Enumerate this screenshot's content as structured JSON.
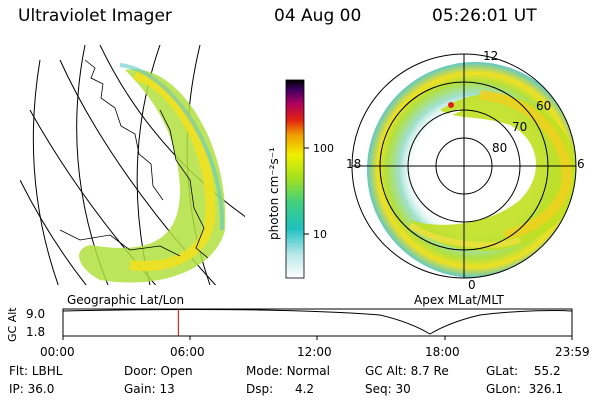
{
  "header": {
    "title": "Ultraviolet Imager",
    "date": "04 Aug 00",
    "time": "05:26:01 UT"
  },
  "left_panel": {
    "label": "Geographic Lat/Lon"
  },
  "right_panel": {
    "label": "Apex MLat/MLT",
    "mlt_labels": {
      "top": "12",
      "left": "18",
      "right": "6",
      "bottom": "0"
    },
    "lat_labels": [
      "60",
      "70",
      "80"
    ]
  },
  "colorbar": {
    "unit": "photon cm⁻²s⁻¹",
    "ticks": [
      "100",
      "10"
    ]
  },
  "timeline": {
    "ylabel": "GC Alt",
    "yticks": [
      "9.0",
      "1.8"
    ],
    "xticks": [
      "00:00",
      "06:00",
      "12:00",
      "18:00",
      "23:59"
    ],
    "marker_hours": 5.434
  },
  "info": {
    "row1": {
      "filter_label": "Flt:",
      "filter": "LBHL",
      "door_label": "Door:",
      "door": "Open",
      "mode_label": "Mode:",
      "mode": "Normal",
      "gcalt_label": "GC Alt:",
      "gcalt": "8.7 Re",
      "glat_label": "GLat:",
      "glat": "55.2"
    },
    "row2": {
      "ip_label": "IP:",
      "ip": "36.0",
      "gain_label": "Gain:",
      "gain": "13",
      "dsp_label": "Dsp:",
      "dsp": "4.2",
      "seq_label": "Seq:",
      "seq": "30",
      "glon_label": "GLon:",
      "glon": "326.1"
    }
  },
  "colors": {
    "marker": "#d00000",
    "grid": "#000000"
  }
}
